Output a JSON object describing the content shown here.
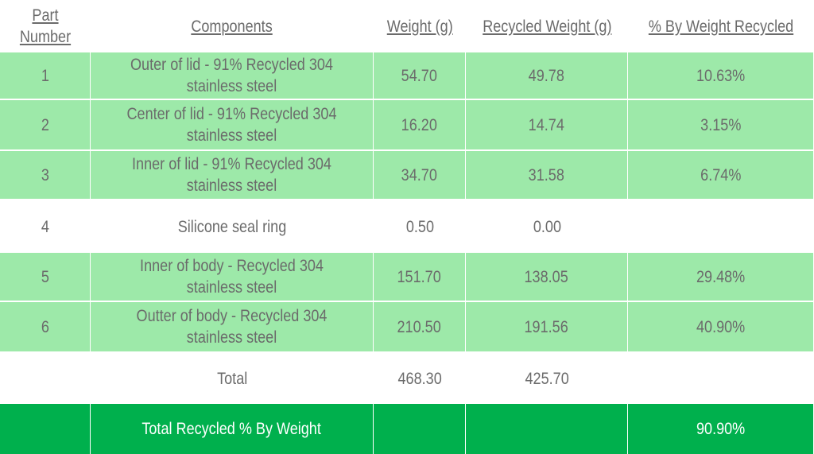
{
  "headers": {
    "part_number": "Part Number",
    "components": "Components",
    "weight": "Weight (g)",
    "recycled_weight": "Recycled Weight (g)",
    "pct_recycled": "% By Weight Recycled"
  },
  "rows": [
    {
      "part": "1",
      "component": "Outer of lid - 91% Recycled 304 stainless steel",
      "weight": "54.70",
      "recycled": "49.78",
      "pct": "10.63%"
    },
    {
      "part": "2",
      "component": "Center of lid - 91% Recycled 304 stainless steel",
      "weight": "16.20",
      "recycled": "14.74",
      "pct": "3.15%"
    },
    {
      "part": "3",
      "component": "Inner of lid - 91% Recycled 304 stainless steel",
      "weight": "34.70",
      "recycled": "31.58",
      "pct": "6.74%"
    },
    {
      "part": "4",
      "component": "Silicone seal ring",
      "weight": "0.50",
      "recycled": "0.00",
      "pct": ""
    },
    {
      "part": "5",
      "component": "Inner of body - Recycled 304 stainless steel",
      "weight": "151.70",
      "recycled": "138.05",
      "pct": "29.48%"
    },
    {
      "part": "6",
      "component": "Outter of body - Recycled 304 stainless steel",
      "weight": "210.50",
      "recycled": "191.56",
      "pct": "40.90%"
    }
  ],
  "total": {
    "label": "Total",
    "weight": "468.30",
    "recycled": "425.70"
  },
  "summary": {
    "label": "Total Recycled % By Weight",
    "pct": "90.90%"
  },
  "colors": {
    "row_green": "#9de9a9",
    "summary_green": "#00b04d",
    "text_gray": "#6b6b6b"
  }
}
